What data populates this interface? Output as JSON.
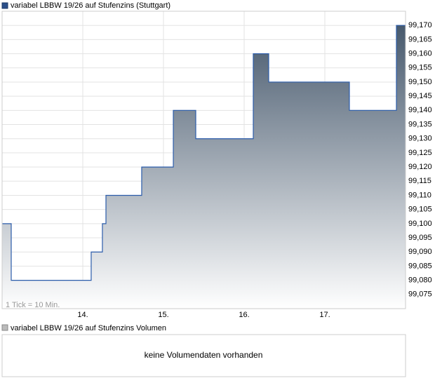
{
  "chart_data": {
    "type": "line",
    "step": true,
    "annotation": "1 Tick = 10 Min.",
    "series": [
      {
        "name": "variabel LBBW 19/26 auf Stufenzins (Stuttgart)",
        "color": "#2b5cab",
        "x": [
          13.0,
          13.113,
          14.104,
          14.243,
          14.287,
          14.73,
          15.122,
          15.4,
          16.113,
          16.304,
          17.304,
          17.887,
          18.0
        ],
        "values": [
          99.1,
          99.08,
          99.09,
          99.1,
          99.11,
          99.12,
          99.14,
          99.13,
          99.16,
          99.15,
          99.14,
          99.17,
          99.17
        ]
      }
    ],
    "xlim": [
      13,
      18
    ],
    "xticks": [
      {
        "value": 14,
        "label": "14."
      },
      {
        "value": 15,
        "label": "15."
      },
      {
        "value": 16,
        "label": "16."
      },
      {
        "value": 17,
        "label": "17."
      }
    ],
    "ylim": [
      99.07,
      99.175
    ],
    "yticks": [
      {
        "value": 99.075,
        "label": "99,075"
      },
      {
        "value": 99.08,
        "label": "99,080"
      },
      {
        "value": 99.085,
        "label": "99,085"
      },
      {
        "value": 99.09,
        "label": "99,090"
      },
      {
        "value": 99.095,
        "label": "99,095"
      },
      {
        "value": 99.1,
        "label": "99,100"
      },
      {
        "value": 99.105,
        "label": "99,105"
      },
      {
        "value": 99.11,
        "label": "99,110"
      },
      {
        "value": 99.115,
        "label": "99,115"
      },
      {
        "value": 99.12,
        "label": "99,120"
      },
      {
        "value": 99.125,
        "label": "99,125"
      },
      {
        "value": 99.13,
        "label": "99,130"
      },
      {
        "value": 99.135,
        "label": "99,135"
      },
      {
        "value": 99.14,
        "label": "99,140"
      },
      {
        "value": 99.145,
        "label": "99,145"
      },
      {
        "value": 99.15,
        "label": "99,150"
      },
      {
        "value": 99.155,
        "label": "99,155"
      },
      {
        "value": 99.16,
        "label": "99,160"
      },
      {
        "value": 99.165,
        "label": "99,165"
      },
      {
        "value": 99.17,
        "label": "99,170"
      }
    ],
    "grid": true
  },
  "volume": {
    "legend": "variabel LBBW 19/26 auf Stufenzins Volumen",
    "message": "keine Volumendaten vorhanden"
  }
}
